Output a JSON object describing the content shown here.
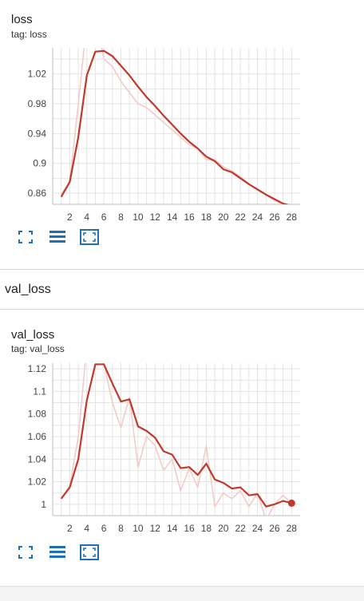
{
  "section": {
    "title": "val_loss"
  },
  "chart_data": [
    {
      "type": "line",
      "title": "loss",
      "subtitle": "tag: loss",
      "xlabel": "",
      "ylabel": "",
      "xlim": [
        0,
        29
      ],
      "ylim": [
        0.845,
        1.055
      ],
      "x_ticks": [
        2,
        4,
        6,
        8,
        10,
        12,
        14,
        16,
        18,
        20,
        22,
        24,
        26,
        28
      ],
      "y_ticks": [
        0.86,
        0.9,
        0.94,
        0.98,
        1.02
      ],
      "y_tick_labels": [
        "0.86",
        "0.9",
        "0.94",
        "0.98",
        "1.02"
      ],
      "grid": true,
      "series": [
        {
          "role": "raw",
          "x": [
            1,
            2,
            3,
            4,
            5,
            6,
            7,
            8,
            9,
            10,
            11,
            12,
            13,
            14,
            15,
            16,
            17,
            18,
            19,
            20,
            21,
            22,
            23,
            24,
            25,
            26,
            27,
            28
          ],
          "values": [
            0.858,
            0.876,
            0.98,
            1.09,
            1.1,
            1.04,
            1.03,
            1.01,
            0.995,
            0.98,
            0.975,
            0.965,
            0.955,
            0.945,
            0.935,
            0.925,
            0.92,
            0.905,
            0.905,
            0.895,
            0.89,
            0.882,
            0.872,
            0.864,
            0.858,
            0.85,
            0.845,
            0.843
          ]
        },
        {
          "role": "smoothed",
          "x": [
            1,
            2,
            3,
            4,
            5,
            6,
            7,
            8,
            9,
            10,
            11,
            12,
            13,
            14,
            15,
            16,
            17,
            18,
            19,
            20,
            21,
            22,
            23,
            24,
            25,
            26,
            27,
            28
          ],
          "values": [
            0.855,
            0.875,
            0.935,
            1.018,
            1.05,
            1.051,
            1.044,
            1.031,
            1.018,
            1.003,
            0.989,
            0.977,
            0.964,
            0.952,
            0.94,
            0.929,
            0.92,
            0.909,
            0.903,
            0.892,
            0.888,
            0.88,
            0.872,
            0.865,
            0.858,
            0.852,
            0.846,
            0.843
          ]
        }
      ]
    },
    {
      "type": "line",
      "title": "val_loss",
      "subtitle": "tag: val_loss",
      "xlabel": "",
      "ylabel": "",
      "xlim": [
        0,
        29
      ],
      "ylim": [
        0.99,
        1.125
      ],
      "x_ticks": [
        2,
        4,
        6,
        8,
        10,
        12,
        14,
        16,
        18,
        20,
        22,
        24,
        26,
        28
      ],
      "y_ticks": [
        1.0,
        1.02,
        1.04,
        1.06,
        1.08,
        1.1,
        1.12
      ],
      "y_tick_labels": [
        "1",
        "1.02",
        "1.04",
        "1.06",
        "1.08",
        "1.1",
        "1.12"
      ],
      "grid": true,
      "series": [
        {
          "role": "raw",
          "x": [
            1,
            2,
            3,
            4,
            5,
            6,
            7,
            8,
            9,
            10,
            11,
            12,
            13,
            14,
            15,
            16,
            17,
            18,
            19,
            20,
            21,
            22,
            23,
            24,
            25,
            26,
            27,
            28
          ],
          "values": [
            1.005,
            1.016,
            1.06,
            1.14,
            1.145,
            1.125,
            1.09,
            1.068,
            1.095,
            1.033,
            1.06,
            1.052,
            1.03,
            1.04,
            1.012,
            1.032,
            1.015,
            1.052,
            0.998,
            1.01,
            1.005,
            1.012,
            0.998,
            1.01,
            0.986,
            1.0,
            1.008,
            1.001
          ]
        },
        {
          "role": "smoothed",
          "x": [
            1,
            2,
            3,
            4,
            5,
            6,
            7,
            8,
            9,
            10,
            11,
            12,
            13,
            14,
            15,
            16,
            17,
            18,
            19,
            20,
            21,
            22,
            23,
            24,
            25,
            26,
            27,
            28
          ],
          "values": [
            1.005,
            1.015,
            1.04,
            1.092,
            1.124,
            1.124,
            1.107,
            1.091,
            1.093,
            1.069,
            1.065,
            1.059,
            1.047,
            1.044,
            1.032,
            1.033,
            1.026,
            1.036,
            1.022,
            1.019,
            1.014,
            1.015,
            1.008,
            1.009,
            0.998,
            1.0,
            1.003,
            1.001
          ]
        }
      ]
    }
  ],
  "colors": {
    "smoothed": "#c0392b",
    "raw": "#f1c9c5",
    "grid": "#e4e4e4",
    "axis": "#bdbdbd",
    "toolbar_icon": "#1e6fb8"
  },
  "icons": [
    "fullscreen-icon",
    "data-table-icon",
    "fit-domain-icon"
  ]
}
